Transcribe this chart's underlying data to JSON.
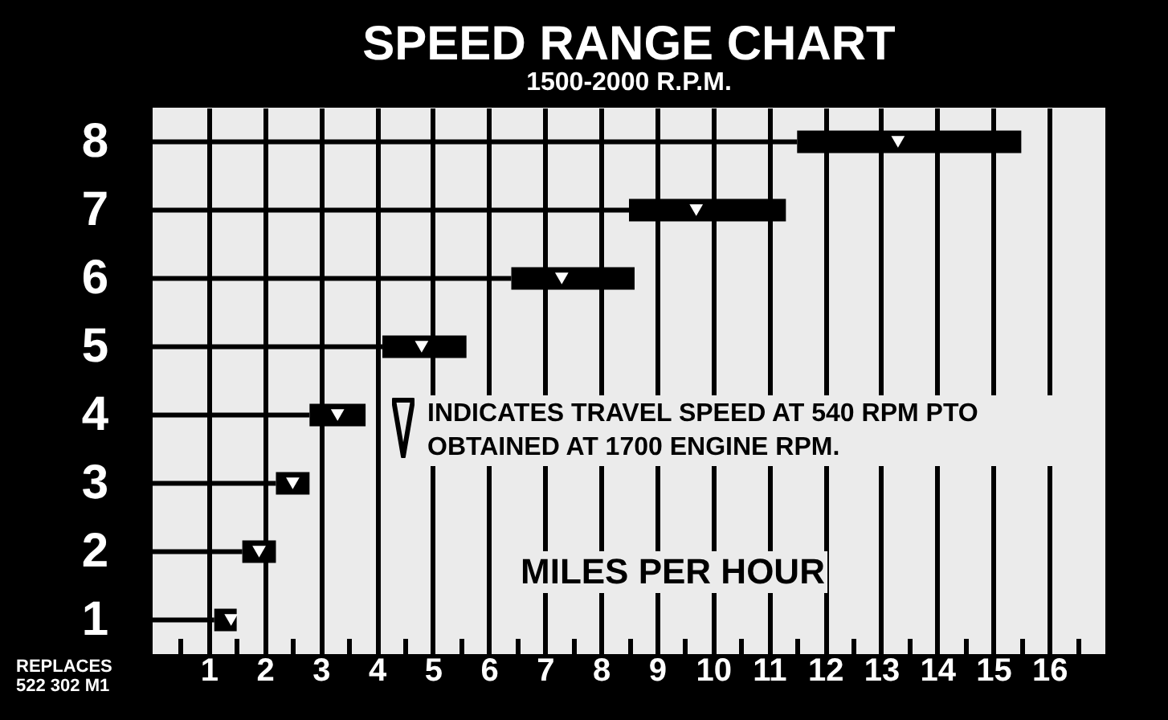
{
  "chart_data": {
    "type": "bar",
    "orientation": "horizontal",
    "stacked": true,
    "title": "SPEED RANGE CHART",
    "subtitle": "1500-2000 R.P.M.",
    "xlabel": "MILES PER HOUR",
    "categories": [
      "8",
      "7",
      "6",
      "5",
      "4",
      "3",
      "2",
      "1"
    ],
    "series": [
      {
        "type": "bar",
        "color": "#000000",
        "values": [
          11.5,
          8.5,
          6.4,
          4.1,
          2.8,
          2.2,
          1.6,
          1.1
        ]
      },
      {
        "type": "bar",
        "color": "#000000",
        "values": [
          4.0,
          2.8,
          2.2,
          1.5,
          1.0,
          0.6,
          0.6,
          0.4
        ]
      },
      {
        "type": "scatter",
        "color": "#ffffff",
        "marker": "triangle",
        "values": [
          13.3,
          9.7,
          7.3,
          4.8,
          3.3,
          2.5,
          1.9,
          1.4
        ]
      }
    ],
    "xlim": [
      0,
      17
    ],
    "xticks": [
      {
        "value": 0.5,
        "label": null
      },
      1,
      {
        "value": 1.5,
        "label": null
      },
      2,
      {
        "value": 2.5,
        "label": null
      },
      3,
      {
        "value": 3.5,
        "label": null
      },
      4,
      {
        "value": 4.5,
        "label": null
      },
      5,
      {
        "value": 5.5,
        "label": null
      },
      6,
      {
        "value": 6.5,
        "label": null
      },
      7,
      {
        "value": 7.5,
        "label": null
      },
      8,
      {
        "value": 8.5,
        "label": null
      },
      9,
      {
        "value": 9.5,
        "label": null
      },
      10,
      {
        "value": 10.5,
        "label": null
      },
      11,
      {
        "value": 11.5,
        "label": null
      },
      12,
      {
        "value": 12.5,
        "label": null
      },
      13,
      {
        "value": 13.5,
        "label": null
      },
      14,
      {
        "value": 14.5,
        "label": null
      },
      15,
      {
        "value": 15.5,
        "label": null
      },
      16,
      {
        "value": 16.5,
        "label": null
      }
    ],
    "grid": "x",
    "annotations": [
      "INDICATES TRAVEL SPEED AT 540 RPM PTO OBTAINED AT 1700 ENGINE RPM.",
      "REPLACES 522 302 M1"
    ]
  }
}
